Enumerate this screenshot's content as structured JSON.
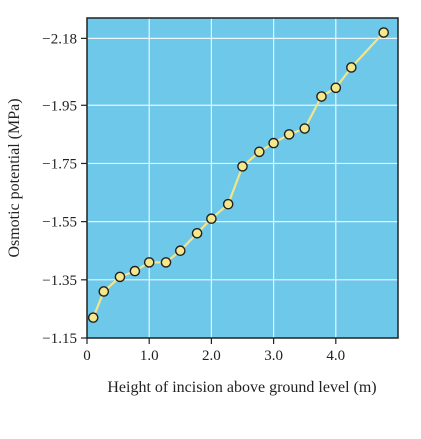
{
  "chart_data": {
    "type": "line",
    "title": "",
    "xlabel": "Height of incision above ground level (m)",
    "ylabel": "Osmotic potential (MPa)",
    "xlim": [
      0,
      5.0
    ],
    "ylim": [
      -1.15,
      -2.25
    ],
    "y_axis_reversed": true,
    "grid": true,
    "colors": {
      "plot_background": "#6ec8ea",
      "grid": "#e8f6fc",
      "line": "#f2e48a",
      "marker_fill": "#f5e78a",
      "marker_edge": "#222222",
      "axis": "#222222"
    },
    "x_ticks": [
      {
        "value": 0,
        "label": "0"
      },
      {
        "value": 1.0,
        "label": "1.0"
      },
      {
        "value": 2.0,
        "label": "2.0"
      },
      {
        "value": 3.0,
        "label": "3.0"
      },
      {
        "value": 4.0,
        "label": "4.0"
      }
    ],
    "y_ticks": [
      {
        "value": -1.15,
        "label": "−1.15"
      },
      {
        "value": -1.35,
        "label": "−1.35"
      },
      {
        "value": -1.55,
        "label": "−1.55"
      },
      {
        "value": -1.75,
        "label": "−1.75"
      },
      {
        "value": -1.95,
        "label": "−1.95"
      },
      {
        "value": -2.18,
        "label": "−2.18"
      }
    ],
    "series": [
      {
        "x": [
          0.1,
          0.27,
          0.53,
          0.77,
          1.0,
          1.27,
          1.5,
          1.77,
          2.0,
          2.27,
          2.5,
          2.77,
          3.0,
          3.25,
          3.5,
          3.77,
          4.0,
          4.25,
          4.77
        ],
        "y": [
          -1.22,
          -1.31,
          -1.36,
          -1.38,
          -1.41,
          -1.41,
          -1.45,
          -1.51,
          -1.56,
          -1.61,
          -1.74,
          -1.79,
          -1.82,
          -1.85,
          -1.87,
          -1.98,
          -2.01,
          -2.08,
          -2.2
        ]
      }
    ]
  }
}
